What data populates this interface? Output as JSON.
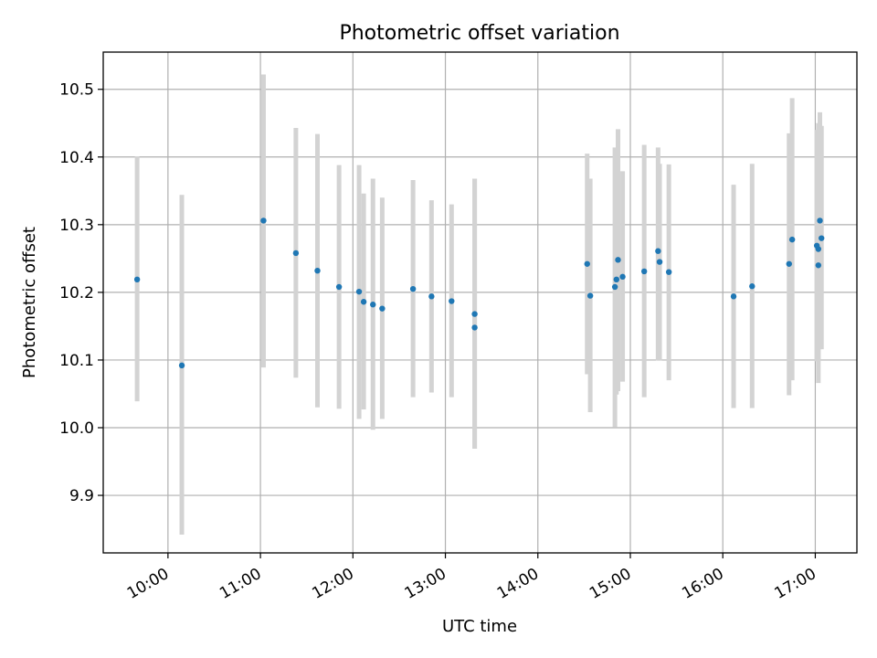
{
  "chart_data": {
    "type": "scatter",
    "title": "Photometric offset variation",
    "xlabel": "UTC time",
    "ylabel": "Photometric offset",
    "xlim": [
      "09:18",
      "17:27"
    ],
    "ylim": [
      9.815,
      10.555
    ],
    "x_ticks": [
      "10:00",
      "11:00",
      "12:00",
      "13:00",
      "14:00",
      "15:00",
      "16:00",
      "17:00"
    ],
    "y_ticks": [
      9.9,
      10.0,
      10.1,
      10.2,
      10.3,
      10.4,
      10.5
    ],
    "grid": true,
    "marker_color": "#1f77b4",
    "errorbar_color": "#d3d3d3",
    "points": [
      {
        "t": "09:40",
        "y": 10.219,
        "lo": 10.039,
        "hi": 10.401
      },
      {
        "t": "10:09",
        "y": 10.092,
        "lo": 9.842,
        "hi": 10.344
      },
      {
        "t": "11:02",
        "y": 10.306,
        "lo": 10.089,
        "hi": 10.522
      },
      {
        "t": "11:23",
        "y": 10.258,
        "lo": 10.074,
        "hi": 10.443
      },
      {
        "t": "11:37",
        "y": 10.232,
        "lo": 10.03,
        "hi": 10.434
      },
      {
        "t": "11:51",
        "y": 10.208,
        "lo": 10.028,
        "hi": 10.388
      },
      {
        "t": "12:04",
        "y": 10.201,
        "lo": 10.013,
        "hi": 10.388
      },
      {
        "t": "12:07",
        "y": 10.186,
        "lo": 10.027,
        "hi": 10.346
      },
      {
        "t": "12:13",
        "y": 10.182,
        "lo": 9.997,
        "hi": 10.368
      },
      {
        "t": "12:19",
        "y": 10.176,
        "lo": 10.013,
        "hi": 10.34
      },
      {
        "t": "12:39",
        "y": 10.205,
        "lo": 10.045,
        "hi": 10.366
      },
      {
        "t": "12:51",
        "y": 10.194,
        "lo": 10.052,
        "hi": 10.336
      },
      {
        "t": "13:04",
        "y": 10.187,
        "lo": 10.045,
        "hi": 10.33
      },
      {
        "t": "13:19",
        "y": 10.168,
        "lo": 9.969,
        "hi": 10.368
      },
      {
        "t": "13:19",
        "y": 10.148,
        "lo": 9.969,
        "hi": 10.368
      },
      {
        "t": "14:32",
        "y": 10.242,
        "lo": 10.079,
        "hi": 10.405
      },
      {
        "t": "14:34",
        "y": 10.195,
        "lo": 10.023,
        "hi": 10.368
      },
      {
        "t": "14:50",
        "y": 10.208,
        "lo": 10.001,
        "hi": 10.414
      },
      {
        "t": "14:51",
        "y": 10.219,
        "lo": 10.049,
        "hi": 10.388
      },
      {
        "t": "14:52",
        "y": 10.248,
        "lo": 10.054,
        "hi": 10.441
      },
      {
        "t": "14:55",
        "y": 10.223,
        "lo": 10.068,
        "hi": 10.379
      },
      {
        "t": "15:09",
        "y": 10.231,
        "lo": 10.045,
        "hi": 10.418
      },
      {
        "t": "15:18",
        "y": 10.261,
        "lo": 10.099,
        "hi": 10.414
      },
      {
        "t": "15:19",
        "y": 10.245,
        "lo": 10.099,
        "hi": 10.39
      },
      {
        "t": "15:25",
        "y": 10.23,
        "lo": 10.07,
        "hi": 10.389
      },
      {
        "t": "16:07",
        "y": 10.194,
        "lo": 10.029,
        "hi": 10.359
      },
      {
        "t": "16:19",
        "y": 10.209,
        "lo": 10.029,
        "hi": 10.39
      },
      {
        "t": "16:43",
        "y": 10.242,
        "lo": 10.048,
        "hi": 10.435
      },
      {
        "t": "16:45",
        "y": 10.278,
        "lo": 10.07,
        "hi": 10.487
      },
      {
        "t": "17:01",
        "y": 10.269,
        "lo": 10.098,
        "hi": 10.44
      },
      {
        "t": "17:02",
        "y": 10.264,
        "lo": 10.098,
        "hi": 10.44
      },
      {
        "t": "17:02",
        "y": 10.24,
        "lo": 10.066,
        "hi": 10.45
      },
      {
        "t": "17:03",
        "y": 10.306,
        "lo": 10.116,
        "hi": 10.466
      },
      {
        "t": "17:04",
        "y": 10.28,
        "lo": 10.116,
        "hi": 10.446
      }
    ]
  }
}
